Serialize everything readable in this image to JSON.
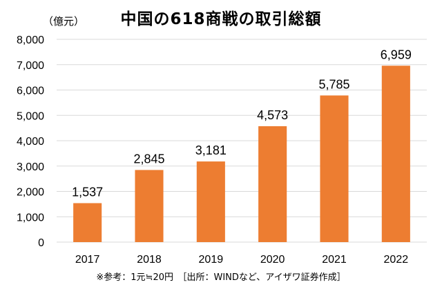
{
  "chart_data": {
    "type": "bar",
    "title": "中国の618商戦の取引総額",
    "unit_label": "（億元）",
    "categories": [
      "2017",
      "2018",
      "2019",
      "2020",
      "2021",
      "2022"
    ],
    "values": [
      1537,
      2845,
      3181,
      4573,
      5785,
      6959
    ],
    "value_labels": [
      "1,537",
      "2,845",
      "3,181",
      "4,573",
      "5,785",
      "6,959"
    ],
    "y_ticks": [
      "0",
      "1,000",
      "2,000",
      "3,000",
      "4,000",
      "5,000",
      "6,000",
      "7,000",
      "8,000"
    ],
    "ylim": [
      0,
      8000
    ],
    "grid": true,
    "legend": "none",
    "bar_color": "#ED7D31",
    "grid_color": "#D9D9D9",
    "note": "※参考：1元≒20円　［出所：WINDなど、アイザワ証券作成］"
  }
}
